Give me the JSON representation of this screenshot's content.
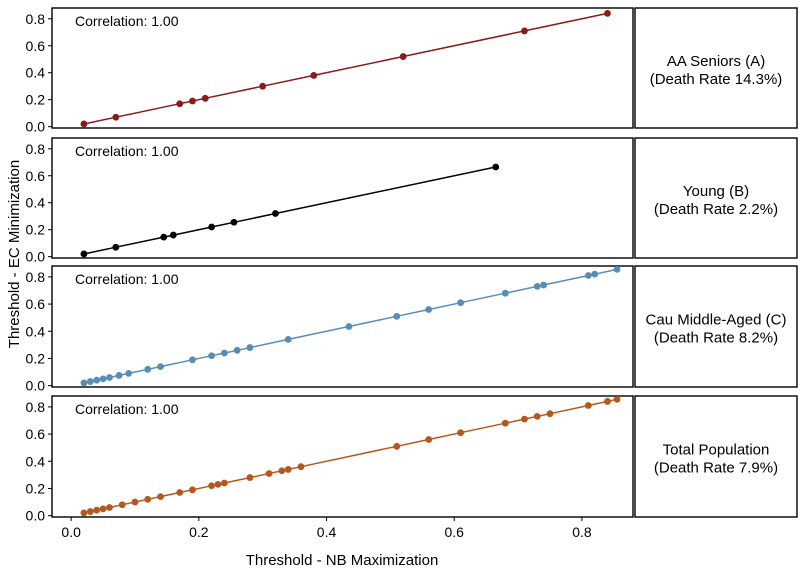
{
  "chart_data": {
    "type": "scatter",
    "xlabel": "Threshold - NB Maximization",
    "ylabel": "Threshold - EC Minimization",
    "xlim": [
      -0.03,
      0.88
    ],
    "ylim": [
      -0.01,
      0.88
    ],
    "x_ticks": [
      "0.0",
      "0.2",
      "0.4",
      "0.6",
      "0.8"
    ],
    "y_ticks": [
      "0.0",
      "0.2",
      "0.4",
      "0.6",
      "0.8"
    ],
    "grid": false,
    "legend": "none",
    "panels": [
      {
        "strip_line1": "AA Seniors (A)",
        "strip_line2": "(Death Rate 14.3%)",
        "annotation": "Correlation: 1.00",
        "color": "#8B1A1A",
        "x": [
          0.02,
          0.07,
          0.17,
          0.19,
          0.21,
          0.3,
          0.38,
          0.52,
          0.71,
          0.84
        ],
        "y": [
          0.02,
          0.07,
          0.17,
          0.19,
          0.21,
          0.3,
          0.38,
          0.52,
          0.71,
          0.84
        ]
      },
      {
        "strip_line1": "Young (B)",
        "strip_line2": "(Death Rate 2.2%)",
        "annotation": "Correlation: 1.00",
        "color": "#000000",
        "x": [
          0.02,
          0.07,
          0.145,
          0.16,
          0.22,
          0.255,
          0.32,
          0.665
        ],
        "y": [
          0.02,
          0.07,
          0.145,
          0.16,
          0.22,
          0.255,
          0.32,
          0.665
        ]
      },
      {
        "strip_line1": "Cau Middle-Aged (C)",
        "strip_line2": "(Death Rate 8.2%)",
        "annotation": "Correlation: 1.00",
        "color": "#5A8DB5",
        "x": [
          0.02,
          0.03,
          0.04,
          0.05,
          0.06,
          0.075,
          0.09,
          0.12,
          0.14,
          0.19,
          0.22,
          0.24,
          0.26,
          0.28,
          0.34,
          0.435,
          0.51,
          0.56,
          0.61,
          0.68,
          0.73,
          0.74,
          0.81,
          0.82,
          0.855
        ],
        "y": [
          0.02,
          0.03,
          0.04,
          0.05,
          0.06,
          0.075,
          0.09,
          0.12,
          0.14,
          0.19,
          0.22,
          0.24,
          0.26,
          0.28,
          0.34,
          0.435,
          0.51,
          0.56,
          0.61,
          0.68,
          0.73,
          0.74,
          0.81,
          0.82,
          0.855
        ]
      },
      {
        "strip_line1": "Total Population",
        "strip_line2": "(Death Rate 7.9%)",
        "annotation": "Correlation: 1.00",
        "color": "#B5581D",
        "x": [
          0.02,
          0.03,
          0.04,
          0.05,
          0.06,
          0.08,
          0.1,
          0.12,
          0.14,
          0.17,
          0.19,
          0.22,
          0.23,
          0.24,
          0.28,
          0.31,
          0.33,
          0.34,
          0.36,
          0.51,
          0.56,
          0.61,
          0.68,
          0.71,
          0.73,
          0.75,
          0.81,
          0.84,
          0.855
        ],
        "y": [
          0.02,
          0.03,
          0.04,
          0.05,
          0.06,
          0.08,
          0.1,
          0.12,
          0.14,
          0.17,
          0.19,
          0.22,
          0.23,
          0.24,
          0.28,
          0.31,
          0.33,
          0.34,
          0.36,
          0.51,
          0.56,
          0.61,
          0.68,
          0.71,
          0.73,
          0.75,
          0.81,
          0.84,
          0.855
        ]
      }
    ]
  }
}
